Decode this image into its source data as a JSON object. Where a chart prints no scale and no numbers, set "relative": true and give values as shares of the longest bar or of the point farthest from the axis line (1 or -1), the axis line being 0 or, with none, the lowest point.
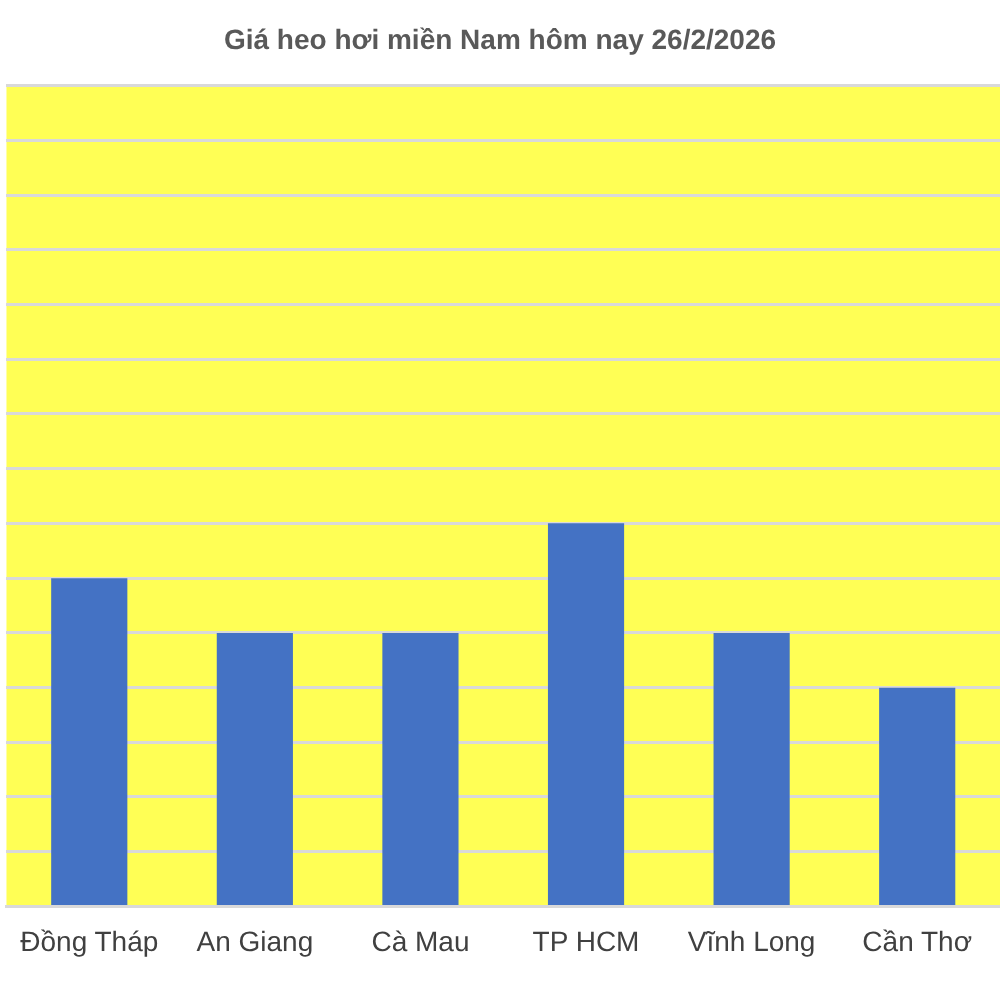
{
  "chart_data": {
    "type": "bar",
    "title": "Giá heo hơi miền Nam hôm nay 26/2/2026",
    "categories": [
      "Đồng Tháp",
      "An Giang",
      "Cà Mau",
      "TP HCM",
      "Vĩnh Long",
      "Cần Thơ"
    ],
    "values": [
      0.857,
      0.714,
      0.714,
      1,
      0.714,
      0.571
    ],
    "color": "#4472c4",
    "relative": true,
    "grid": "y"
  }
}
